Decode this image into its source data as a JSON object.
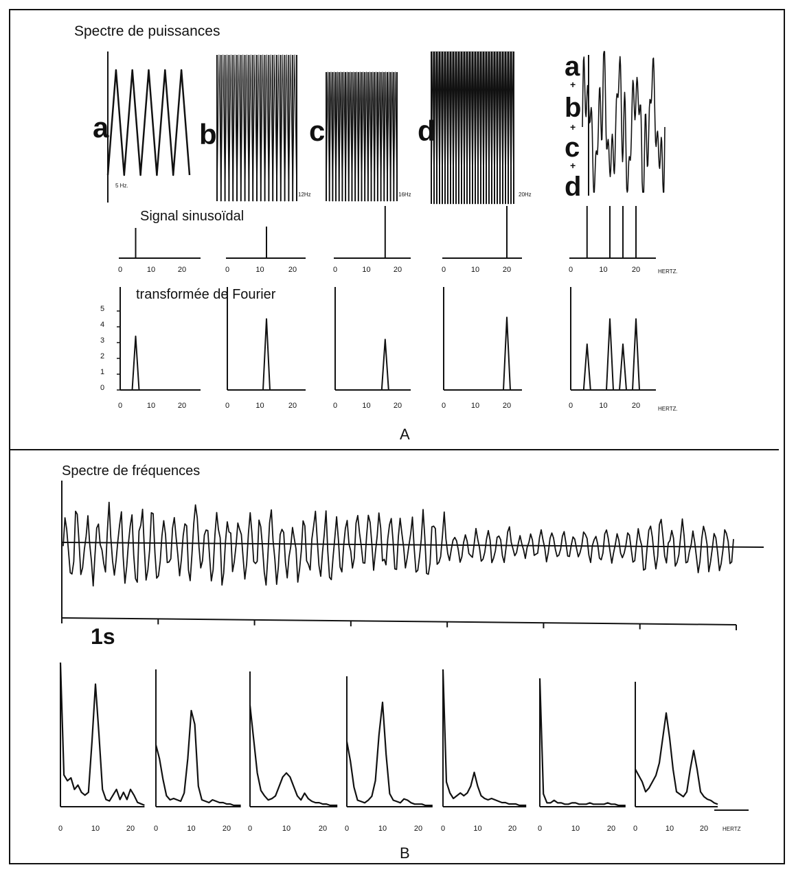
{
  "panel_a": {
    "title": "Spectre de puissances",
    "row2_label": "Signal sinusoïdal",
    "row3_label": "transformée de Fourier",
    "panel_label": "A",
    "unit_label": "HERTZ.",
    "fourier_yticks": [
      "0",
      "1",
      "2",
      "3",
      "4",
      "5"
    ],
    "xticks": [
      "0",
      "10",
      "20"
    ],
    "signals": [
      {
        "letter": "a",
        "freq_label": "5 Hz.",
        "freq": 5,
        "peak": 3.4
      },
      {
        "letter": "b",
        "freq_label": "12Hz",
        "freq": 12,
        "peak": 4.5
      },
      {
        "letter": "c",
        "freq_label": "16Hz",
        "freq": 16,
        "peak": 3.2
      },
      {
        "letter": "d",
        "freq_label": "20Hz",
        "freq": 20,
        "peak": 4.6
      }
    ],
    "sum": {
      "letters": [
        "a",
        "+",
        "b",
        "+",
        "c",
        "+",
        "d"
      ],
      "peaks": [
        {
          "freq": 5,
          "value": 2.9
        },
        {
          "freq": 12,
          "value": 4.5
        },
        {
          "freq": 16,
          "value": 2.9
        },
        {
          "freq": 20,
          "value": 4.5
        }
      ]
    }
  },
  "panel_b": {
    "title": "Spectre de fréquences",
    "time_label": "1s",
    "panel_label": "B",
    "unit_label": "HERTZ",
    "xticks": [
      "0",
      "10",
      "20"
    ]
  },
  "chart_data": [
    {
      "type": "line",
      "title": "Spectre de puissances",
      "xlabel": "HERTZ.",
      "xlim": [
        0,
        25
      ],
      "ylim": [
        0,
        5
      ],
      "series": [
        {
          "name": "a",
          "peak_hz": 5,
          "value": 3.4
        },
        {
          "name": "b",
          "peak_hz": 12,
          "value": 4.5
        },
        {
          "name": "c",
          "peak_hz": 16,
          "value": 3.2
        },
        {
          "name": "d",
          "peak_hz": 20,
          "value": 4.6
        },
        {
          "name": "a+b+c+d",
          "peaks_hz": [
            5,
            12,
            16,
            20
          ],
          "values": [
            2.9,
            4.5,
            2.9,
            4.5
          ]
        }
      ]
    },
    {
      "type": "line",
      "title": "Spectre de fréquences",
      "xlabel": "HERTZ",
      "xlim": [
        0,
        25
      ],
      "x": [
        0,
        1,
        2,
        3,
        4,
        5,
        6,
        7,
        8,
        9,
        10,
        11,
        12,
        13,
        14,
        15,
        16,
        17,
        18,
        19,
        20,
        21,
        22,
        23,
        24
      ],
      "series": [
        {
          "values": [
            1.0,
            0.22,
            0.18,
            0.2,
            0.12,
            0.15,
            0.1,
            0.08,
            0.1,
            0.45,
            0.85,
            0.5,
            0.12,
            0.05,
            0.04,
            0.08,
            0.12,
            0.05,
            0.1,
            0.05,
            0.12,
            0.08,
            0.03,
            0.02,
            0.01
          ]
        },
        {
          "values": [
            0.45,
            0.35,
            0.2,
            0.08,
            0.05,
            0.06,
            0.05,
            0.04,
            0.1,
            0.35,
            0.7,
            0.6,
            0.15,
            0.05,
            0.04,
            0.03,
            0.05,
            0.04,
            0.03,
            0.03,
            0.02,
            0.02,
            0.01,
            0.01,
            0.01
          ]
        },
        {
          "values": [
            0.75,
            0.5,
            0.25,
            0.12,
            0.08,
            0.05,
            0.06,
            0.08,
            0.15,
            0.22,
            0.25,
            0.22,
            0.15,
            0.08,
            0.05,
            0.1,
            0.06,
            0.04,
            0.03,
            0.03,
            0.02,
            0.02,
            0.01,
            0.01,
            0.01
          ]
        },
        {
          "values": [
            0.5,
            0.35,
            0.15,
            0.05,
            0.04,
            0.03,
            0.05,
            0.08,
            0.2,
            0.55,
            0.8,
            0.4,
            0.1,
            0.05,
            0.04,
            0.03,
            0.06,
            0.05,
            0.03,
            0.02,
            0.02,
            0.02,
            0.01,
            0.01,
            0.01
          ]
        },
        {
          "values": [
            1.0,
            0.18,
            0.1,
            0.06,
            0.08,
            0.1,
            0.08,
            0.1,
            0.15,
            0.25,
            0.15,
            0.08,
            0.06,
            0.05,
            0.06,
            0.05,
            0.04,
            0.03,
            0.03,
            0.02,
            0.02,
            0.02,
            0.01,
            0.01,
            0.01
          ]
        },
        {
          "values": [
            1.0,
            0.1,
            0.03,
            0.03,
            0.05,
            0.03,
            0.03,
            0.02,
            0.02,
            0.03,
            0.03,
            0.02,
            0.02,
            0.02,
            0.03,
            0.02,
            0.02,
            0.02,
            0.02,
            0.03,
            0.02,
            0.02,
            0.01,
            0.01,
            0.01
          ]
        },
        {
          "values": [
            0.3,
            0.25,
            0.2,
            0.12,
            0.15,
            0.2,
            0.25,
            0.35,
            0.55,
            0.75,
            0.55,
            0.3,
            0.12,
            0.1,
            0.08,
            0.12,
            0.3,
            0.45,
            0.3,
            0.12,
            0.08,
            0.06,
            0.05,
            0.03,
            0.02
          ]
        }
      ]
    }
  ]
}
